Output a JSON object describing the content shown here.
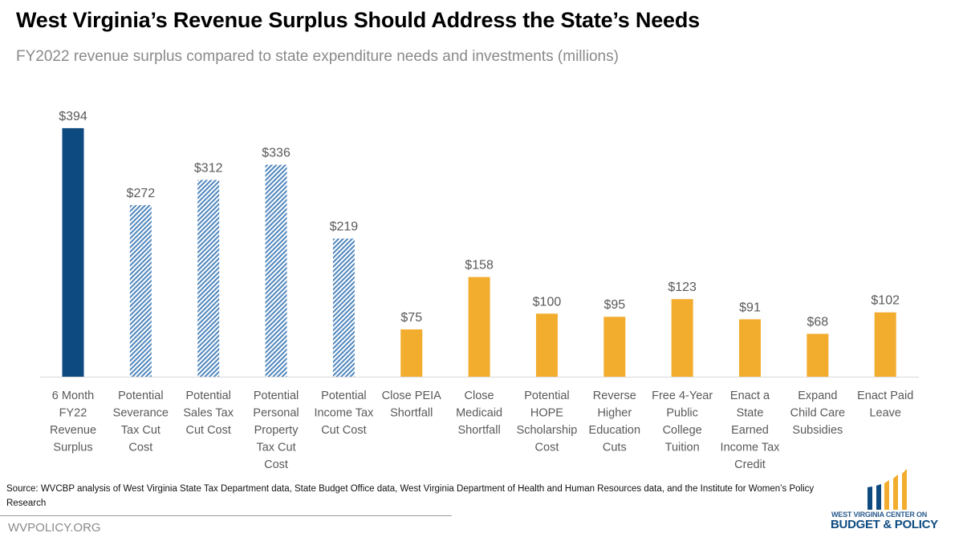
{
  "header": {
    "title": "West Virginia’s Revenue Surplus Should Address the State’s Needs",
    "subtitle": "FY2022 revenue surplus compared to state expenditure needs and investments (millions)"
  },
  "colors": {
    "surplus": "#0d4a80",
    "tax_cut_hatch": "#4f86bd",
    "needs": "#f2ad2f",
    "label_text": "#595959",
    "axis": "#d9d9d9"
  },
  "chart_data": {
    "type": "bar",
    "title": "West Virginia’s Revenue Surplus Should Address the State’s Needs",
    "subtitle": "FY2022 revenue surplus compared to state expenditure needs and investments (millions)",
    "xlabel": "",
    "ylabel": "",
    "ylim": [
      0,
      400
    ],
    "grid": false,
    "legend": "none",
    "value_prefix": "$",
    "categories": [
      [
        "6 Month",
        "FY22",
        "Revenue",
        "Surplus"
      ],
      [
        "Potential",
        "Severance",
        "Tax Cut",
        "Cost"
      ],
      [
        "Potential",
        "Sales Tax",
        "Cut Cost"
      ],
      [
        "Potential",
        "Personal",
        "Property",
        "Tax Cut",
        "Cost"
      ],
      [
        "Potential",
        "Income Tax",
        "Cut Cost"
      ],
      [
        "Close PEIA",
        "Shortfall"
      ],
      [
        "Close",
        "Medicaid",
        "Shortfall"
      ],
      [
        "Potential",
        "HOPE",
        "Scholarship",
        "Cost"
      ],
      [
        "Reverse",
        "Higher",
        "Education",
        "Cuts"
      ],
      [
        "Free 4-Year",
        "Public",
        "College",
        "Tuition"
      ],
      [
        "Enact a",
        "State",
        "Earned",
        "Income Tax",
        "Credit"
      ],
      [
        "Expand",
        "Child Care",
        "Subsidies"
      ],
      [
        "Enact Paid",
        "Leave"
      ]
    ],
    "values": [
      394,
      272,
      312,
      336,
      219,
      75,
      158,
      100,
      95,
      123,
      91,
      68,
      102
    ],
    "data_labels": [
      "$394",
      "$272",
      "$312",
      "$336",
      "$219",
      "$75",
      "$158",
      "$100",
      "$95",
      "$123",
      "$91",
      "$68",
      "$102"
    ],
    "groups": [
      "surplus",
      "tax_cut",
      "tax_cut",
      "tax_cut",
      "tax_cut",
      "needs",
      "needs",
      "needs",
      "needs",
      "needs",
      "needs",
      "needs",
      "needs"
    ]
  },
  "footer": {
    "source": "Source:  WVCBP analysis of West Virginia State Tax Department  data, State Budget Office data, West Virginia Department  of Health and Human  Resources data, and the Institute for Women’s  Policy Research",
    "site": "WVPOLICY.ORG",
    "logo_line1": "WEST VIRGINIA CENTER ON",
    "logo_line2": "BUDGET & POLICY"
  }
}
